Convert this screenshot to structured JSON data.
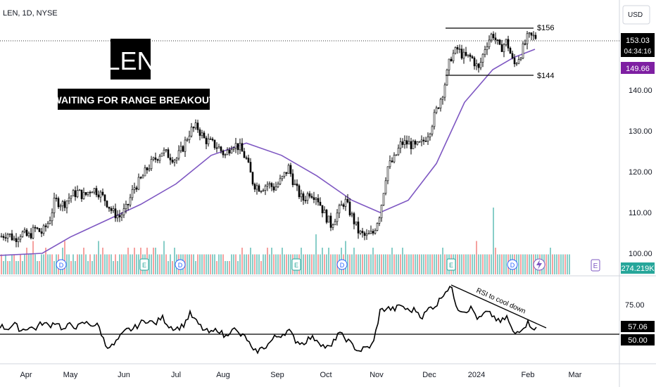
{
  "header": {
    "symbol_line": "LEN, 1D, NYSE",
    "currency": "USD"
  },
  "overlay": {
    "ticker": "LEN",
    "subtitle": "WAITING FOR RANGE BREAKOUT"
  },
  "annotations": {
    "range_top": "$156",
    "range_bottom": "$144",
    "rsi_note": "RSI to cool down"
  },
  "price_axis": {
    "ticks": [
      "140.00",
      "130.00",
      "120.00",
      "110.00",
      "100.00"
    ],
    "last_price": "153.03",
    "countdown": "04:34:16",
    "ma_value": "149.66",
    "volume_value": "274.219K"
  },
  "rsi_axis": {
    "tick": "75.00",
    "current": "57.06",
    "level": "50.00"
  },
  "time_axis": [
    "Apr",
    "May",
    "Jun",
    "Jul",
    "Aug",
    "Sep",
    "Oct",
    "Nov",
    "Dec",
    "2024",
    "Feb",
    "Mar"
  ],
  "events": [
    "D",
    "D",
    "E",
    "D",
    "E",
    "D",
    "E",
    "D",
    "E"
  ],
  "colors": {
    "up": "#26a69a",
    "down": "#ef5350",
    "candle": "#000000",
    "ma": "#7e57c2",
    "rsi": "#000000"
  },
  "chart_data": [
    {
      "type": "candlestick",
      "series": [
        {
          "name": "LEN",
          "points": [
            [
              0,
              104
            ],
            [
              10,
              105
            ],
            [
              20,
              103.5
            ],
            [
              30,
              105
            ],
            [
              40,
              104
            ],
            [
              50,
              106
            ],
            [
              60,
              105
            ],
            [
              70,
              108
            ],
            [
              78,
              113
            ],
            [
              90,
              112
            ],
            [
              100,
              114
            ],
            [
              110,
              115
            ],
            [
              120,
              114
            ],
            [
              130,
              116
            ],
            [
              140,
              115
            ],
            [
              150,
              113
            ],
            [
              160,
              110
            ],
            [
              170,
              109
            ],
            [
              180,
              111
            ],
            [
              190,
              116
            ],
            [
              200,
              118
            ],
            [
              210,
              121
            ],
            [
              220,
              123
            ],
            [
              230,
              125
            ],
            [
              240,
              124
            ],
            [
              250,
              123
            ],
            [
              260,
              126
            ],
            [
              270,
              130
            ],
            [
              280,
              131
            ],
            [
              290,
              128
            ],
            [
              300,
              127
            ],
            [
              310,
              126
            ],
            [
              320,
              124
            ],
            [
              330,
              127
            ],
            [
              340,
              126
            ],
            [
              350,
              123
            ],
            [
              360,
              117
            ],
            [
              370,
              116
            ],
            [
              380,
              117
            ],
            [
              390,
              116
            ],
            [
              400,
              118
            ],
            [
              410,
              121
            ],
            [
              420,
              116
            ],
            [
              430,
              113
            ],
            [
              440,
              115
            ],
            [
              450,
              114
            ],
            [
              460,
              110
            ],
            [
              470,
              107
            ],
            [
              480,
              110
            ],
            [
              490,
              113
            ],
            [
              500,
              109
            ],
            [
              510,
              105
            ],
            [
              520,
              104
            ],
            [
              530,
              105
            ],
            [
              540,
              110
            ],
            [
              550,
              121
            ],
            [
              560,
              123
            ],
            [
              570,
              127
            ],
            [
              580,
              127
            ],
            [
              590,
              126
            ],
            [
              600,
              127
            ],
            [
              610,
              130
            ],
            [
              620,
              135
            ],
            [
              630,
              140
            ],
            [
              640,
              148
            ],
            [
              650,
              150
            ],
            [
              660,
              148
            ],
            [
              670,
              148
            ],
            [
              680,
              145
            ],
            [
              690,
              151
            ],
            [
              700,
              154
            ],
            [
              710,
              150
            ],
            [
              720,
              152
            ],
            [
              730,
              146
            ],
            [
              740,
              149
            ],
            [
              750,
              153
            ],
            [
              760,
              153
            ]
          ]
        }
      ],
      "ylim": [
        97,
        160
      ]
    },
    {
      "type": "line",
      "series": [
        {
          "name": "",
          "points": [
            [
              0,
              99.5
            ],
            [
              60,
              100
            ],
            [
              100,
              104
            ],
            [
              150,
              108
            ],
            [
              200,
              112
            ],
            [
              250,
              117
            ],
            [
              300,
              124
            ],
            [
              350,
              127
            ],
            [
              400,
              124
            ],
            [
              450,
              119
            ],
            [
              500,
              113
            ],
            [
              540,
              110
            ],
            [
              580,
              113
            ],
            [
              620,
              122
            ],
            [
              660,
              137
            ],
            [
              700,
              145
            ],
            [
              730,
              148
            ],
            [
              760,
              150
            ]
          ]
        }
      ]
    },
    {
      "type": "bar",
      "values": [
        0.3,
        0.2,
        0.3,
        0.2,
        0.2,
        0.3,
        0.3,
        0.2,
        0.2,
        0.3,
        0.2,
        0.3,
        0.4,
        0.3,
        0.3,
        0.5,
        0.3,
        0.2,
        0.2,
        0.3,
        0.3,
        0.4,
        0.3,
        0.3,
        0.3,
        0.2,
        0.3,
        0.3,
        0.2,
        0.4,
        0.5,
        0.3,
        0.3,
        0.2,
        0.3,
        0.2,
        0.3,
        0.3,
        0.3,
        0.4,
        0.3,
        0.2,
        0.3,
        0.2,
        0.3,
        0.3,
        0.5,
        0.3,
        0.4,
        0.3,
        0.3,
        0.3,
        0.3,
        0.2,
        0.3,
        0.2,
        0.3,
        0.3,
        0.3,
        0.3,
        0.4,
        0.3,
        0.3,
        0.4,
        0.3,
        0.3,
        0.4,
        0.3,
        0.3,
        0.4,
        0.3,
        0.3,
        0.4,
        0.4,
        0.3,
        0.3,
        0.3,
        0.5,
        0.3,
        0.2,
        0.3,
        0.2,
        0.4,
        0.3,
        0.3,
        0.3,
        0.3,
        0.3,
        0.3,
        0.3,
        0.3,
        0.3,
        0.2,
        0.3,
        0.3,
        0.3,
        0.3,
        0.3,
        0.3,
        0.3,
        0.3,
        0.3,
        0.2,
        0.3,
        0.3,
        0.3,
        0.2,
        0.2,
        0.2,
        0.3,
        0.3,
        0.3,
        0.2,
        0.3,
        0.4,
        0.3,
        0.3,
        0.3,
        0.4,
        0.3,
        0.3,
        0.3,
        0.3,
        0.2,
        0.3,
        0.3,
        0.4,
        0.3,
        0.4,
        0.3,
        0.3,
        0.3,
        0.3,
        0.4,
        0.3,
        0.3,
        0.3,
        0.3,
        0.3,
        0.3,
        0.3,
        0.3,
        0.4,
        0.3,
        0.3,
        0.3,
        0.3,
        0.3,
        0.3,
        0.6,
        0.3,
        0.3,
        0.4,
        0.3,
        0.3,
        0.4,
        0.3,
        0.3,
        0.3,
        0.3,
        0.3,
        0.4,
        0.3,
        0.5,
        0.3,
        0.3,
        0.3,
        0.4,
        0.3,
        0.3,
        0.3,
        0.3,
        0.3,
        0.3,
        0.3,
        0.3,
        0.4,
        0.3,
        0.3,
        0.3,
        0.3,
        0.3,
        0.3,
        0.3,
        0.3,
        0.4,
        0.3,
        0.3,
        0.3,
        0.3,
        0.4,
        0.3,
        0.3,
        0.3,
        0.3,
        0.3,
        0.3,
        0.3,
        0.3,
        0.3,
        0.3,
        0.3,
        0.3,
        0.3,
        0.3,
        0.3,
        0.3,
        0.3,
        0.3,
        0.4,
        0.3,
        0.3,
        0.3,
        0.3,
        0.3,
        0.3,
        0.3,
        0.3,
        0.3,
        0.3,
        0.3,
        0.3,
        0.3,
        0.3,
        0.3,
        0.5,
        0.3,
        0.3,
        0.3,
        0.3,
        0.3,
        0.3,
        0.3,
        1.0,
        0.4,
        0.3,
        0.3,
        0.3,
        0.3,
        0.3,
        0.3,
        0.3,
        0.3,
        0.3,
        0.3,
        0.3,
        0.3,
        0.3,
        0.3,
        0.3,
        0.3,
        0.3,
        0.3,
        0.3,
        0.3,
        0.3,
        0.3,
        0.3,
        0.3,
        0.3,
        0.4,
        0.3,
        0.3,
        0.3,
        0.3,
        0.3,
        0.3,
        0.3,
        0.3,
        0.3
      ],
      "ylim": [
        0,
        1.05
      ]
    },
    {
      "type": "line",
      "series": [
        {
          "name": "",
          "points": [
            [
              0,
              60
            ],
            [
              10,
              58
            ],
            [
              20,
              61
            ],
            [
              30,
              57
            ],
            [
              40,
              59
            ],
            [
              50,
              58
            ],
            [
              60,
              62
            ],
            [
              70,
              60
            ],
            [
              80,
              63
            ],
            [
              90,
              57
            ],
            [
              100,
              61
            ],
            [
              110,
              59
            ],
            [
              120,
              62
            ],
            [
              130,
              61
            ],
            [
              140,
              60
            ],
            [
              150,
              47
            ],
            [
              160,
              46
            ],
            [
              170,
              52
            ],
            [
              180,
              57
            ],
            [
              190,
              58
            ],
            [
              200,
              62
            ],
            [
              210,
              64
            ],
            [
              220,
              61
            ],
            [
              230,
              66
            ],
            [
              240,
              60
            ],
            [
              250,
              58
            ],
            [
              260,
              60
            ],
            [
              270,
              68
            ],
            [
              280,
              62
            ],
            [
              290,
              57
            ],
            [
              300,
              55
            ],
            [
              310,
              58
            ],
            [
              320,
              52
            ],
            [
              330,
              59
            ],
            [
              340,
              54
            ],
            [
              350,
              52
            ],
            [
              360,
              42
            ],
            [
              370,
              44
            ],
            [
              380,
              47
            ],
            [
              390,
              52
            ],
            [
              400,
              54
            ],
            [
              410,
              57
            ],
            [
              420,
              50
            ],
            [
              430,
              48
            ],
            [
              440,
              52
            ],
            [
              450,
              51
            ],
            [
              460,
              46
            ],
            [
              470,
              45
            ],
            [
              480,
              55
            ],
            [
              490,
              52
            ],
            [
              500,
              47
            ],
            [
              510,
              43
            ],
            [
              520,
              45
            ],
            [
              530,
              47
            ],
            [
              540,
              70
            ],
            [
              550,
              72
            ],
            [
              560,
              71
            ],
            [
              570,
              74
            ],
            [
              580,
              70
            ],
            [
              590,
              71
            ],
            [
              600,
              66
            ],
            [
              610,
              72
            ],
            [
              620,
              74
            ],
            [
              630,
              82
            ],
            [
              640,
              87
            ],
            [
              650,
              72
            ],
            [
              660,
              70
            ],
            [
              670,
              72
            ],
            [
              680,
              64
            ],
            [
              690,
              69
            ],
            [
              700,
              67
            ],
            [
              710,
              62
            ],
            [
              720,
              66
            ],
            [
              730,
              54
            ],
            [
              740,
              58
            ],
            [
              750,
              62
            ],
            [
              760,
              58
            ]
          ]
        }
      ],
      "ylim": [
        40,
        90
      ]
    }
  ]
}
